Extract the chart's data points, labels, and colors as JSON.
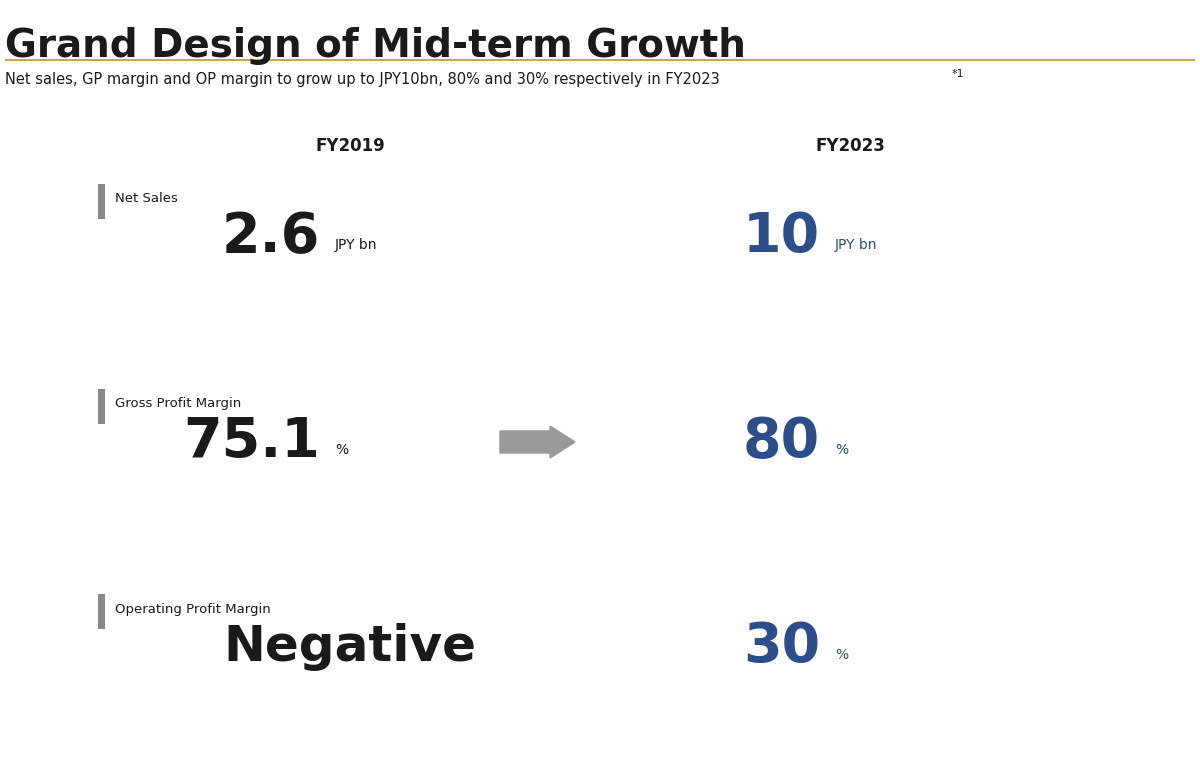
{
  "title": "Grand Design of Mid-term Growth",
  "subtitle": "Net sales, GP margin and OP margin to grow up to JPY10bn, 80% and 30% respectively in FY2023",
  "subtitle_superscript": "*1",
  "col1_header": "FY2019",
  "col2_header": "FY2023",
  "title_color": "#1a1a1a",
  "subtitle_color": "#1a1a1a",
  "header_color": "#1a1a1a",
  "dark_color": "#1a1a1a",
  "blue_color": "#2c4f8c",
  "gray_bar_color": "#888888",
  "arrow_color": "#999999",
  "divider_color": "#c8a84b",
  "bg_color": "#ffffff",
  "rows": [
    {
      "label": "Net Sales",
      "fy2019_main": "2.6",
      "fy2019_unit": "JPY bn",
      "fy2023_main": "10",
      "fy2023_unit": "JPY bn",
      "has_arrow": false,
      "fy2019_symbol": "",
      "fy2023_symbol": ""
    },
    {
      "label": "Gross Profit Margin",
      "fy2019_main": "75.1",
      "fy2019_unit": "%",
      "fy2023_main": "80",
      "fy2023_unit": "%",
      "has_arrow": true,
      "fy2019_symbol": "%",
      "fy2023_symbol": "%"
    },
    {
      "label": "Operating Profit Margin",
      "fy2019_main": "Negative",
      "fy2019_unit": "",
      "fy2023_main": "30",
      "fy2023_unit": "%",
      "has_arrow": false,
      "fy2019_symbol": "",
      "fy2023_symbol": "%"
    }
  ]
}
